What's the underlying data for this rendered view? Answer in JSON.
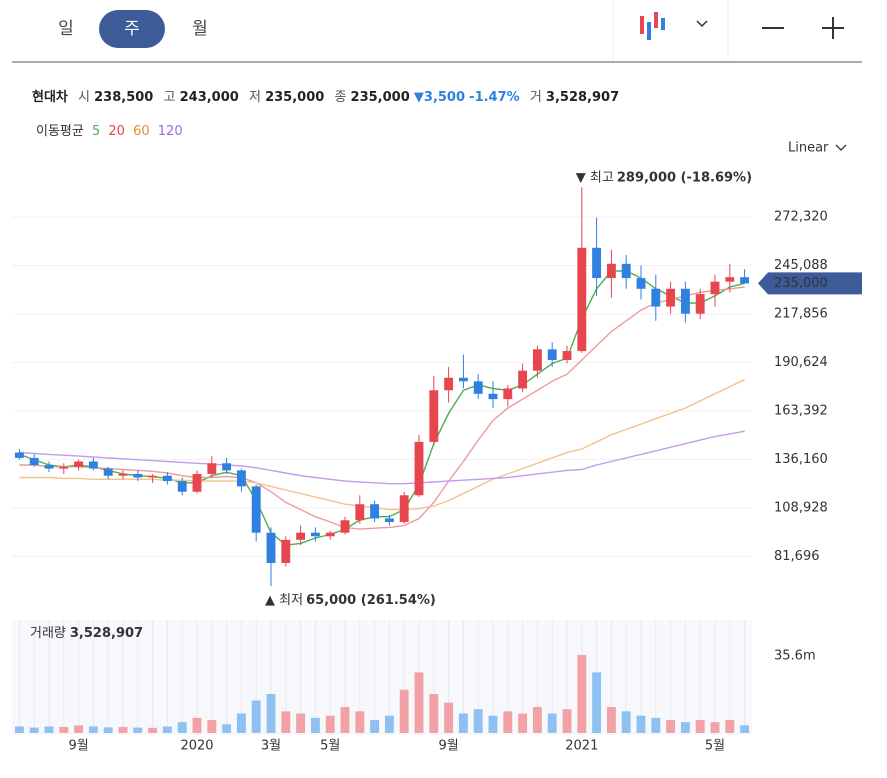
{
  "tabs": [
    "일",
    "주",
    "월"
  ],
  "quote": {
    "name": "현대차",
    "items": [
      {
        "label": "시",
        "value": "238,500"
      },
      {
        "label": "고",
        "value": "243,000"
      },
      {
        "label": "저",
        "value": "235,000"
      },
      {
        "label": "종",
        "value": "235,000"
      }
    ],
    "change": "▼3,500",
    "change_pct": "-1.47%",
    "volume_label": "거",
    "volume": "3,528,907"
  },
  "ma_legend": {
    "label": "이동평균",
    "periods": [
      "5",
      "20",
      "60",
      "120"
    ]
  },
  "scale_mode": "Linear",
  "chart_data": {
    "type": "candlestick",
    "up_color": "#e8464f",
    "down_color": "#2f80e0",
    "categories": [
      null,
      null,
      null,
      null,
      "9월",
      null,
      null,
      null,
      null,
      null,
      null,
      null,
      "2020",
      null,
      null,
      null,
      null,
      "3월",
      null,
      null,
      null,
      "5월",
      null,
      null,
      null,
      null,
      null,
      null,
      null,
      "9월",
      null,
      null,
      null,
      null,
      null,
      null,
      null,
      null,
      "2021",
      null,
      null,
      null,
      null,
      null,
      null,
      null,
      null,
      "5월",
      null,
      null
    ],
    "ohlc": [
      [
        140000,
        142000,
        136000,
        137000
      ],
      [
        137000,
        139000,
        132000,
        133000
      ],
      [
        133000,
        135000,
        129000,
        131000
      ],
      [
        131000,
        134000,
        128000,
        132000
      ],
      [
        132000,
        136000,
        130000,
        135000
      ],
      [
        135000,
        137000,
        130000,
        131000
      ],
      [
        131000,
        132000,
        125000,
        127000
      ],
      [
        127000,
        130000,
        125000,
        128000
      ],
      [
        128000,
        130000,
        124000,
        126000
      ],
      [
        126000,
        128000,
        123000,
        127000
      ],
      [
        127000,
        129000,
        122000,
        124000
      ],
      [
        124000,
        126000,
        116000,
        118000
      ],
      [
        118000,
        130000,
        117000,
        128000
      ],
      [
        128000,
        138000,
        126000,
        134000
      ],
      [
        134000,
        137000,
        128000,
        130000
      ],
      [
        130000,
        131000,
        118000,
        121000
      ],
      [
        121000,
        122000,
        90000,
        95000
      ],
      [
        95000,
        98000,
        65000,
        78000
      ],
      [
        78000,
        93000,
        76000,
        91000
      ],
      [
        91000,
        99000,
        88000,
        95000
      ],
      [
        95000,
        98000,
        90000,
        93000
      ],
      [
        93000,
        96000,
        91000,
        95000
      ],
      [
        95000,
        104000,
        94000,
        102000
      ],
      [
        102000,
        116000,
        100000,
        111000
      ],
      [
        111000,
        113000,
        101000,
        103000
      ],
      [
        103000,
        105000,
        99000,
        101000
      ],
      [
        101000,
        118000,
        100000,
        116000
      ],
      [
        116000,
        150000,
        115000,
        146000
      ],
      [
        146000,
        183000,
        144000,
        175000
      ],
      [
        175000,
        188000,
        168000,
        182000
      ],
      [
        182000,
        195000,
        176000,
        180000
      ],
      [
        180000,
        184000,
        170000,
        173000
      ],
      [
        173000,
        180000,
        165000,
        170000
      ],
      [
        170000,
        178000,
        166000,
        176000
      ],
      [
        176000,
        190000,
        174000,
        186000
      ],
      [
        186000,
        200000,
        182000,
        198000
      ],
      [
        198000,
        202000,
        188000,
        192000
      ],
      [
        192000,
        200000,
        190000,
        197000
      ],
      [
        197000,
        289000,
        196000,
        255000
      ],
      [
        255000,
        272000,
        228000,
        238000
      ],
      [
        238000,
        254000,
        227000,
        246000
      ],
      [
        246000,
        251000,
        232000,
        238000
      ],
      [
        238000,
        245000,
        226000,
        232000
      ],
      [
        232000,
        240000,
        214000,
        222000
      ],
      [
        222000,
        236000,
        218000,
        232000
      ],
      [
        232000,
        236000,
        213000,
        218000
      ],
      [
        218000,
        232000,
        215000,
        229000
      ],
      [
        229000,
        240000,
        222000,
        236000
      ],
      [
        236000,
        246000,
        230000,
        238500
      ],
      [
        238500,
        243000,
        235000,
        235000
      ]
    ],
    "moving_averages": [
      {
        "name": "5",
        "color": "#4caf50",
        "values": [
          139000,
          136000,
          133000,
          132000,
          133000,
          132000,
          130000,
          128000,
          127000,
          126500,
          125500,
          123000,
          123000,
          127000,
          129000,
          127000,
          113000,
          95000,
          88000,
          89000,
          92000,
          94000,
          97000,
          102000,
          104000,
          104000,
          108000,
          122000,
          145000,
          162000,
          175000,
          178000,
          176000,
          175000,
          178000,
          184000,
          190000,
          193000,
          215000,
          232000,
          242000,
          242000,
          238000,
          232000,
          228000,
          224000,
          224000,
          228000,
          233000,
          235000
        ]
      },
      {
        "name": "20",
        "color": "#f09a9a",
        "values": [
          133000,
          133000,
          132000,
          132000,
          132000,
          131500,
          131000,
          130500,
          130000,
          129500,
          128500,
          127000,
          126000,
          126000,
          126500,
          126000,
          123000,
          118000,
          112000,
          108000,
          104000,
          101000,
          98000,
          97000,
          97500,
          98000,
          99000,
          103000,
          112000,
          124000,
          135000,
          147000,
          158000,
          165000,
          170000,
          175000,
          180000,
          184000,
          192000,
          200000,
          208000,
          214000,
          220000,
          224000,
          226000,
          228000,
          230000,
          231000,
          232000,
          233000
        ]
      },
      {
        "name": "60",
        "color": "#f5c08e",
        "values": [
          126000,
          126000,
          126000,
          125500,
          125500,
          125000,
          125000,
          125000,
          125000,
          125000,
          124500,
          124500,
          124000,
          124000,
          124000,
          124000,
          123000,
          121000,
          119000,
          117000,
          115000,
          113000,
          111000,
          110000,
          109000,
          108000,
          108000,
          108500,
          110000,
          113000,
          117000,
          121000,
          125000,
          128000,
          131000,
          134000,
          137000,
          140000,
          142000,
          146000,
          150000,
          153000,
          156000,
          159000,
          162000,
          165000,
          169000,
          173000,
          177000,
          181000
        ]
      },
      {
        "name": "120",
        "color": "#c39cf0",
        "values": [
          140000,
          139500,
          139000,
          138500,
          138000,
          137500,
          137000,
          136500,
          136000,
          135500,
          135000,
          134500,
          134000,
          133500,
          133000,
          132500,
          131500,
          130000,
          128500,
          127000,
          126000,
          125000,
          124000,
          123500,
          123000,
          122500,
          122500,
          123000,
          123500,
          124000,
          124500,
          125000,
          125500,
          126000,
          127000,
          128000,
          129000,
          130000,
          130500,
          133000,
          135000,
          137000,
          139000,
          141000,
          143000,
          145000,
          147000,
          149000,
          150500,
          152000
        ]
      }
    ],
    "ylim": [
      57200,
      298700
    ],
    "yticks": [
      {
        "value": 81696,
        "label": "81,696"
      },
      {
        "value": 108928,
        "label": "108,928"
      },
      {
        "value": 136160,
        "label": "136,160"
      },
      {
        "value": 163392,
        "label": "163,392"
      },
      {
        "value": 190624,
        "label": "190,624"
      },
      {
        "value": 217856,
        "label": "217,856"
      },
      {
        "value": 245088,
        "label": "245,088"
      },
      {
        "value": 272320,
        "label": "272,320"
      }
    ],
    "grid": true,
    "last_price": {
      "value": 235000,
      "label": "235,000"
    },
    "high_annotation": {
      "text": "▼ 최고",
      "value": 289000,
      "label": "289,000 (-18.69%)",
      "index": 38
    },
    "low_annotation": {
      "text": "▲ 최저",
      "value": 65000,
      "label": "65,000 (261.54%)",
      "index": 17
    },
    "volume_title": "거래량",
    "volume_value": "3,528,907",
    "volumes": [
      3000000,
      2500000,
      3000000,
      2800000,
      3500000,
      3000000,
      2600000,
      2800000,
      2500000,
      2400000,
      3000000,
      5000000,
      7000000,
      6000000,
      4000000,
      9000000,
      15000000,
      18000000,
      10000000,
      9000000,
      7000000,
      8000000,
      12000000,
      10000000,
      6000000,
      8000000,
      20000000,
      28000000,
      18000000,
      14000000,
      9000000,
      11000000,
      8000000,
      10000000,
      9000000,
      12000000,
      9000000,
      11000000,
      36000000,
      28000000,
      12000000,
      10000000,
      8000000,
      7000000,
      6000000,
      5000000,
      6000000,
      5000000,
      6000000,
      3528907
    ],
    "vlim": [
      0,
      52200000
    ],
    "vticks": [
      {
        "value": 35600000,
        "label": "35.6m"
      }
    ]
  }
}
